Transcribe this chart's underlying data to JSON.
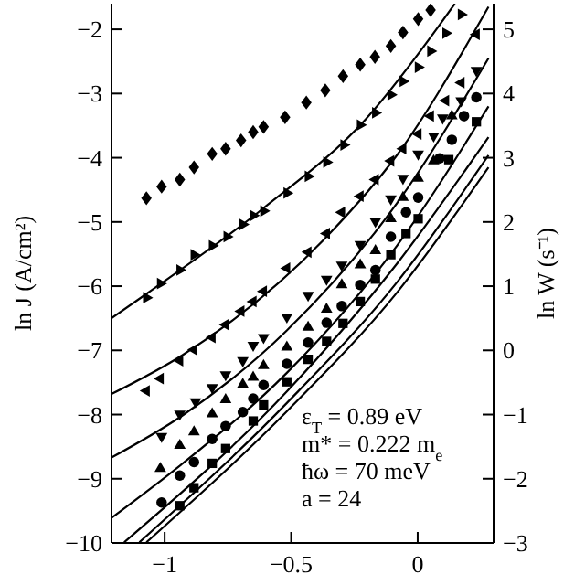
{
  "chart_data": {
    "type": "scatter",
    "ylabel": "ln J (A/cm²)",
    "y2label": "ln W (s⁻¹)",
    "xlim": [
      -1.21,
      0.3
    ],
    "xticks": [
      {
        "value": -1,
        "label": "−1"
      },
      {
        "value": -0.5,
        "label": "−0.5"
      },
      0
    ],
    "ylim": [
      -10,
      -1.6
    ],
    "yticks": [
      {
        "value": -10,
        "label": "−10"
      },
      {
        "value": -9,
        "label": "−9"
      },
      {
        "value": -8,
        "label": "−8"
      },
      {
        "value": -7,
        "label": "−7"
      },
      {
        "value": -6,
        "label": "−6"
      },
      {
        "value": -5,
        "label": "−5"
      },
      {
        "value": -4,
        "label": "−4"
      },
      {
        "value": -3,
        "label": "−3"
      },
      {
        "value": -2,
        "label": "−2"
      }
    ],
    "y2lim": [
      -3,
      5.4
    ],
    "y2ticks": [
      {
        "value": -3,
        "label": "−3"
      },
      {
        "value": -2,
        "label": "−2"
      },
      {
        "value": -1,
        "label": "−1"
      },
      0,
      1,
      2,
      3,
      4,
      5
    ],
    "grid": false,
    "annotations": [
      "ε$_{T}$ = 0.89 eV",
      "m* = 0.222 m$_{e}$",
      "ħω = 70 meV",
      "a = 24"
    ],
    "series": [
      {
        "marker": "diamond",
        "color": "#000000",
        "x": [
          -1.072,
          -1.012,
          -0.94,
          -0.884,
          -0.812,
          -0.759,
          -0.698,
          -0.65,
          -0.609,
          -0.524,
          -0.44,
          -0.365,
          -0.295,
          -0.227,
          -0.169,
          -0.106,
          -0.058,
          0.002,
          0.051
        ],
        "values": [
          -4.63,
          -4.45,
          -4.34,
          -4.15,
          -3.94,
          -3.86,
          -3.73,
          -3.6,
          -3.52,
          -3.37,
          -3.14,
          -2.95,
          -2.73,
          -2.55,
          -2.43,
          -2.26,
          -2.05,
          -1.84,
          -1.7
        ]
      },
      {
        "marker": "triangle-right",
        "color": "#000000",
        "x": [
          -1.072,
          -1.017,
          -0.94,
          -0.884,
          -0.812,
          -0.754,
          -0.691,
          -0.65,
          -0.609,
          -0.517,
          -0.433,
          -0.36,
          -0.292,
          -0.227,
          -0.167,
          -0.106,
          -0.058,
          0.002,
          0.051,
          0.111,
          0.172
        ],
        "values": [
          -6.18,
          -5.96,
          -5.75,
          -5.51,
          -5.37,
          -5.23,
          -5.04,
          -4.9,
          -4.83,
          -4.55,
          -4.29,
          -4.07,
          -3.8,
          -3.49,
          -3.3,
          -3.02,
          -2.81,
          -2.59,
          -2.34,
          -2.06,
          -1.77
        ]
      },
      {
        "marker": "triangle-left",
        "color": "#000000",
        "x": [
          -1.072,
          -1.017,
          -0.94,
          -0.884,
          -0.812,
          -0.759,
          -0.698,
          -0.65,
          -0.609,
          -0.517,
          -0.433,
          -0.36,
          -0.3,
          -0.227,
          -0.167,
          -0.106,
          -0.058,
          0.002,
          0.051,
          0.111,
          0.172,
          0.232
        ],
        "values": [
          -7.63,
          -7.44,
          -7.16,
          -6.99,
          -6.8,
          -6.6,
          -6.39,
          -6.24,
          -6.08,
          -5.72,
          -5.47,
          -5.18,
          -4.85,
          -4.6,
          -4.34,
          -4.05,
          -3.86,
          -3.63,
          -3.35,
          -3.11,
          -2.83,
          -2.08
        ]
      },
      {
        "marker": "triangle-down",
        "color": "#000000",
        "x": [
          -1.012,
          -0.94,
          -0.878,
          -0.812,
          -0.759,
          -0.691,
          -0.65,
          -0.609,
          -0.517,
          -0.433,
          -0.36,
          -0.3,
          -0.227,
          -0.167,
          -0.106,
          -0.058,
          0.002,
          0.063,
          0.099,
          0.172,
          0.232
        ],
        "values": [
          -8.34,
          -7.99,
          -7.8,
          -7.58,
          -7.38,
          -7.16,
          -6.92,
          -6.8,
          -6.48,
          -6.14,
          -5.89,
          -5.67,
          -5.35,
          -4.99,
          -4.64,
          -4.32,
          -3.94,
          -3.66,
          -3.38,
          -3.11,
          -2.64
        ]
      },
      {
        "marker": "triangle",
        "color": "#000000",
        "x": [
          -1.017,
          -0.94,
          -0.884,
          -0.812,
          -0.759,
          -0.691,
          -0.65,
          -0.609,
          -0.517,
          -0.433,
          -0.36,
          -0.3,
          -0.227,
          -0.167,
          -0.106,
          -0.058,
          0.002,
          0.063,
          0.135
        ],
        "values": [
          -8.84,
          -8.48,
          -8.27,
          -7.99,
          -7.77,
          -7.53,
          -7.42,
          -7.24,
          -6.95,
          -6.64,
          -6.36,
          -5.98,
          -5.67,
          -5.45,
          -4.95,
          -4.62,
          -4.32,
          -4.05,
          -3.35
        ]
      },
      {
        "marker": "circle",
        "color": "#000000",
        "x": [
          -1.012,
          -0.94,
          -0.884,
          -0.812,
          -0.759,
          -0.691,
          -0.65,
          -0.609,
          -0.517,
          -0.433,
          -0.36,
          -0.3,
          -0.227,
          -0.167,
          -0.106,
          -0.046,
          0.002,
          0.087,
          0.135,
          0.183,
          0.232
        ],
        "values": [
          -9.37,
          -8.95,
          -8.74,
          -8.38,
          -8.18,
          -7.96,
          -7.75,
          -7.54,
          -7.21,
          -6.88,
          -6.57,
          -6.31,
          -5.98,
          -5.75,
          -5.23,
          -4.85,
          -4.62,
          -4.01,
          -3.72,
          -3.35,
          -3.06
        ]
      },
      {
        "marker": "square",
        "color": "#000000",
        "x": [
          -0.94,
          -0.884,
          -0.812,
          -0.759,
          -0.65,
          -0.609,
          -0.517,
          -0.433,
          -0.36,
          -0.295,
          -0.227,
          -0.167,
          -0.106,
          -0.046,
          0.002,
          0.123,
          0.232
        ],
        "values": [
          -9.42,
          -9.14,
          -8.76,
          -8.53,
          -8.1,
          -7.85,
          -7.49,
          -7.14,
          -6.86,
          -6.58,
          -6.24,
          -5.89,
          -5.51,
          -5.18,
          -4.95,
          -4.03,
          -3.44
        ]
      },
      {
        "type": "line",
        "color": "#000000",
        "x": [
          -1.21,
          -1.072,
          -0.614,
          -0.203,
          0.087,
          0.147
        ],
        "values": [
          -6.5,
          -6.12,
          -4.8,
          -3.39,
          -1.93,
          -1.6
        ]
      },
      {
        "type": "line",
        "color": "#000000",
        "x": [
          -1.21,
          -0.928,
          -0.372,
          -0.082,
          0.28
        ],
        "values": [
          -7.68,
          -7.07,
          -5.28,
          -3.96,
          -1.65
        ]
      },
      {
        "type": "line",
        "color": "#000000",
        "x": [
          -1.21,
          -0.928,
          -0.517,
          -0.082,
          0.28
        ],
        "values": [
          -8.67,
          -8.01,
          -6.69,
          -4.71,
          -2.45
        ]
      },
      {
        "type": "line",
        "color": "#000000",
        "x": [
          -1.21,
          -0.928,
          -0.517,
          -0.082,
          0.28
        ],
        "values": [
          -9.61,
          -8.76,
          -7.35,
          -5.37,
          -3.2
        ]
      },
      {
        "type": "line",
        "color": "#000000",
        "x": [
          -1.16,
          -0.517,
          -0.082,
          0.28
        ],
        "values": [
          -9.99,
          -7.64,
          -5.65,
          -3.68
        ]
      },
      {
        "type": "line",
        "color": "#000000",
        "x": [
          -1.1,
          -0.517,
          -0.082,
          0.28
        ],
        "values": [
          -9.99,
          -7.82,
          -5.94,
          -3.96
        ]
      },
      {
        "type": "line",
        "color": "#000000",
        "x": [
          -1.072,
          -0.517,
          -0.082,
          0.28
        ],
        "values": [
          -9.99,
          -7.95,
          -6.1,
          -4.15
        ]
      }
    ]
  }
}
